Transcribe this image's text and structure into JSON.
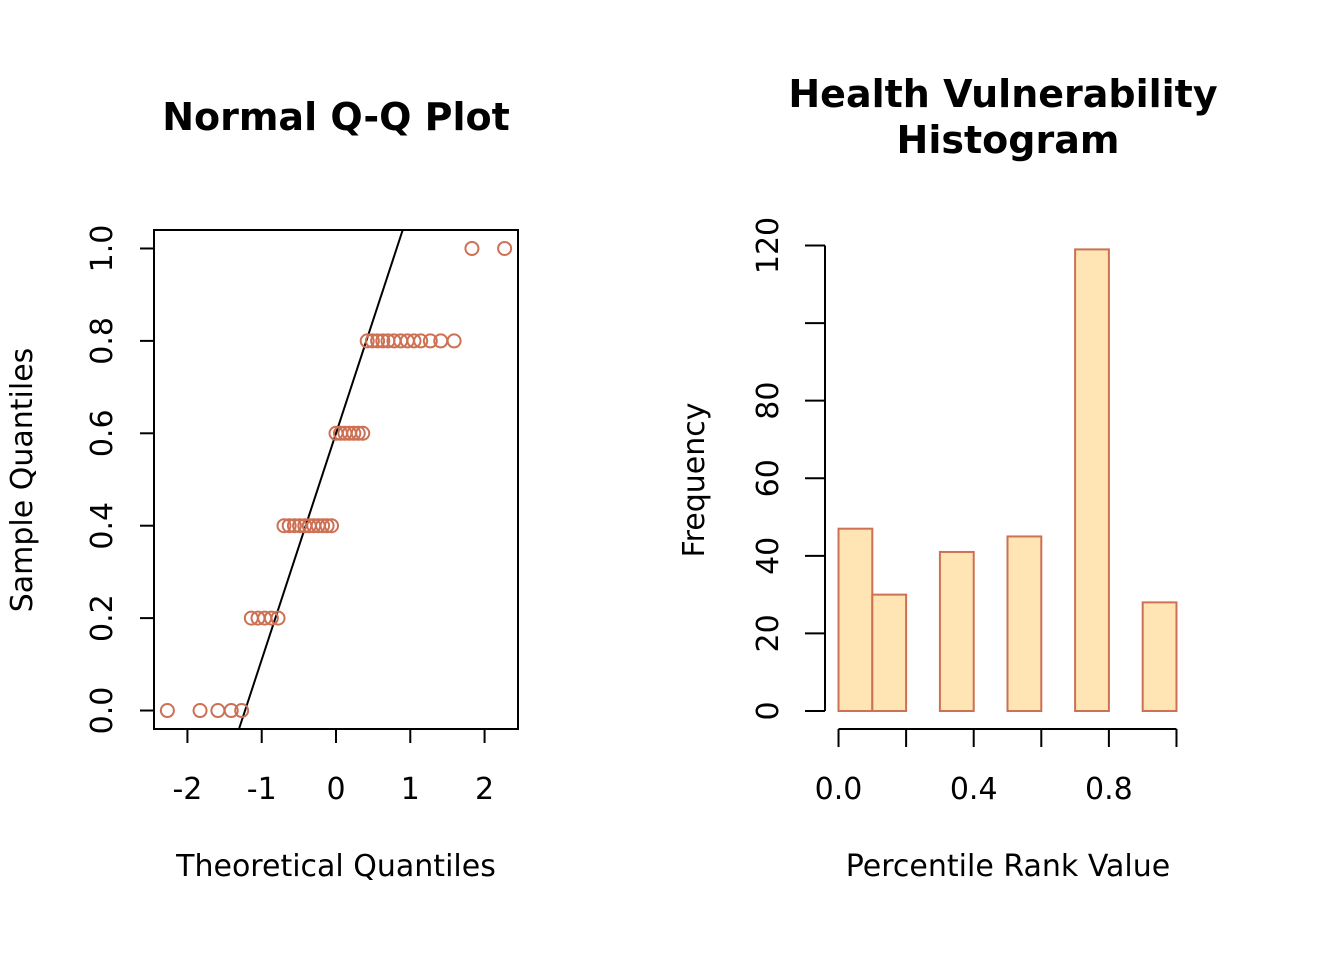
{
  "colors": {
    "point_stroke": "#CD7054",
    "bar_fill": "#FFE5B4",
    "bar_stroke": "#CD7054",
    "axis": "#000000"
  },
  "chart_data": [
    {
      "type": "scatter",
      "title": "Normal Q-Q Plot",
      "xlabel": "Theoretical Quantiles",
      "ylabel": "Sample Quantiles",
      "xlim": [
        -2.45,
        2.45
      ],
      "ylim": [
        -0.04,
        1.04
      ],
      "xticks": [
        -2,
        -1,
        0,
        1,
        2
      ],
      "xtick_labels": [
        "-2",
        "-1",
        "0",
        "1",
        "2"
      ],
      "yticks": [
        0,
        0.2,
        0.4,
        0.6,
        0.8,
        1.0
      ],
      "ytick_labels": [
        "0.0",
        "0.2",
        "0.4",
        "0.6",
        "0.8",
        "1.0"
      ],
      "grid": false,
      "reference_line": {
        "intercept": 0.6,
        "slope": 0.49
      },
      "points": [
        {
          "x": -2.27,
          "y": 0.0
        },
        {
          "x": -1.83,
          "y": 0.0
        },
        {
          "x": -1.59,
          "y": 0.0
        },
        {
          "x": -1.41,
          "y": 0.0
        },
        {
          "x": -1.27,
          "y": 0.0
        },
        {
          "x": -1.14,
          "y": 0.2
        },
        {
          "x": -1.05,
          "y": 0.2
        },
        {
          "x": -0.96,
          "y": 0.2
        },
        {
          "x": -0.87,
          "y": 0.2
        },
        {
          "x": -0.78,
          "y": 0.2
        },
        {
          "x": -0.7,
          "y": 0.4
        },
        {
          "x": -0.63,
          "y": 0.4
        },
        {
          "x": -0.56,
          "y": 0.4
        },
        {
          "x": -0.49,
          "y": 0.4
        },
        {
          "x": -0.42,
          "y": 0.4
        },
        {
          "x": -0.36,
          "y": 0.4
        },
        {
          "x": -0.3,
          "y": 0.4
        },
        {
          "x": -0.24,
          "y": 0.4
        },
        {
          "x": -0.18,
          "y": 0.4
        },
        {
          "x": -0.12,
          "y": 0.4
        },
        {
          "x": -0.06,
          "y": 0.4
        },
        {
          "x": 0.0,
          "y": 0.6
        },
        {
          "x": 0.06,
          "y": 0.6
        },
        {
          "x": 0.12,
          "y": 0.6
        },
        {
          "x": 0.18,
          "y": 0.6
        },
        {
          "x": 0.24,
          "y": 0.6
        },
        {
          "x": 0.3,
          "y": 0.6
        },
        {
          "x": 0.36,
          "y": 0.6
        },
        {
          "x": 0.42,
          "y": 0.8
        },
        {
          "x": 0.49,
          "y": 0.8
        },
        {
          "x": 0.56,
          "y": 0.8
        },
        {
          "x": 0.63,
          "y": 0.8
        },
        {
          "x": 0.7,
          "y": 0.8
        },
        {
          "x": 0.78,
          "y": 0.8
        },
        {
          "x": 0.87,
          "y": 0.8
        },
        {
          "x": 0.96,
          "y": 0.8
        },
        {
          "x": 1.05,
          "y": 0.8
        },
        {
          "x": 1.14,
          "y": 0.8
        },
        {
          "x": 1.27,
          "y": 0.8
        },
        {
          "x": 1.41,
          "y": 0.8
        },
        {
          "x": 1.59,
          "y": 0.8
        },
        {
          "x": 1.83,
          "y": 1.0
        },
        {
          "x": 2.27,
          "y": 1.0
        }
      ]
    },
    {
      "type": "bar",
      "title": "Health Vulnerability Histogram",
      "title_lines": [
        "Health Vulnerability",
        "Histogram"
      ],
      "xlabel": "Percentile Rank Value",
      "ylabel": "Frequency",
      "xlim": [
        -0.04,
        1.04
      ],
      "ylim": [
        0,
        124
      ],
      "bins": [
        {
          "x0": 0.0,
          "x1": 0.1,
          "count": 47
        },
        {
          "x0": 0.1,
          "x1": 0.2,
          "count": 30
        },
        {
          "x0": 0.2,
          "x1": 0.3,
          "count": 0
        },
        {
          "x0": 0.3,
          "x1": 0.4,
          "count": 41
        },
        {
          "x0": 0.4,
          "x1": 0.5,
          "count": 0
        },
        {
          "x0": 0.5,
          "x1": 0.6,
          "count": 45
        },
        {
          "x0": 0.6,
          "x1": 0.7,
          "count": 0
        },
        {
          "x0": 0.7,
          "x1": 0.8,
          "count": 119
        },
        {
          "x0": 0.8,
          "x1": 0.9,
          "count": 0
        },
        {
          "x0": 0.9,
          "x1": 1.0,
          "count": 28
        }
      ],
      "xticks": [
        0,
        0.2,
        0.4,
        0.6,
        0.8,
        1.0
      ],
      "xtick_labels": [
        "0.0",
        "",
        "0.4",
        "",
        "0.8",
        ""
      ],
      "yticks": [
        0,
        20,
        40,
        60,
        80,
        100,
        120
      ],
      "ytick_labels": [
        "0",
        "20",
        "40",
        "60",
        "80",
        "",
        "120"
      ],
      "grid": false
    }
  ]
}
